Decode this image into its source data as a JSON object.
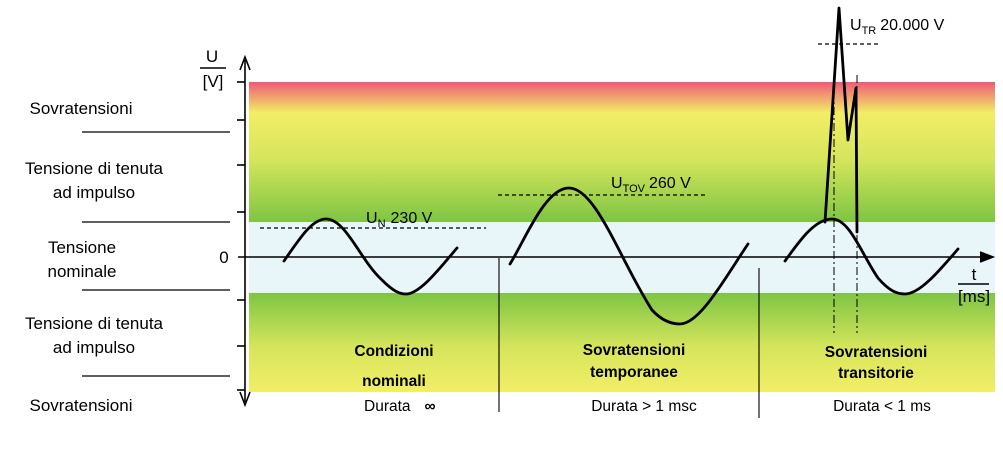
{
  "left_labels": {
    "overvoltage_top": "Sovratensioni",
    "withstand_top": [
      "Tensione di tenuta",
      "ad impulso"
    ],
    "nominal": [
      "Tensione",
      "nominale"
    ],
    "withstand_bottom": [
      "Tensione di tenuta",
      "ad impulso"
    ],
    "overvoltage_bottom": "Sovratensioni"
  },
  "axes": {
    "y_label": "U",
    "y_unit": "[V]",
    "x_label": "t",
    "x_unit": "[ms]",
    "zero": "0"
  },
  "annotations": {
    "un": {
      "main": "U",
      "sub": "N",
      "value": "230 V"
    },
    "utov": {
      "main": "U",
      "sub": "TOV",
      "value": "260 V"
    },
    "utr": {
      "main": "U",
      "sub": "TR",
      "value": "20.000  V"
    }
  },
  "sections": [
    {
      "title": [
        "Condizioni",
        "nominali"
      ],
      "duration": "Durata",
      "duration_symbol": "∞"
    },
    {
      "title": [
        "Sovratensioni",
        "temporanee"
      ],
      "duration": "Durata > 1 msc"
    },
    {
      "title": [
        "Sovratensioni",
        "transitorie"
      ],
      "duration": "Durata  < 1 ms"
    }
  ],
  "colors": {
    "red": "#ee5a78",
    "yellow": "#f2ee66",
    "green": "#7ec544",
    "nominal_band": "#e8f5f9"
  }
}
